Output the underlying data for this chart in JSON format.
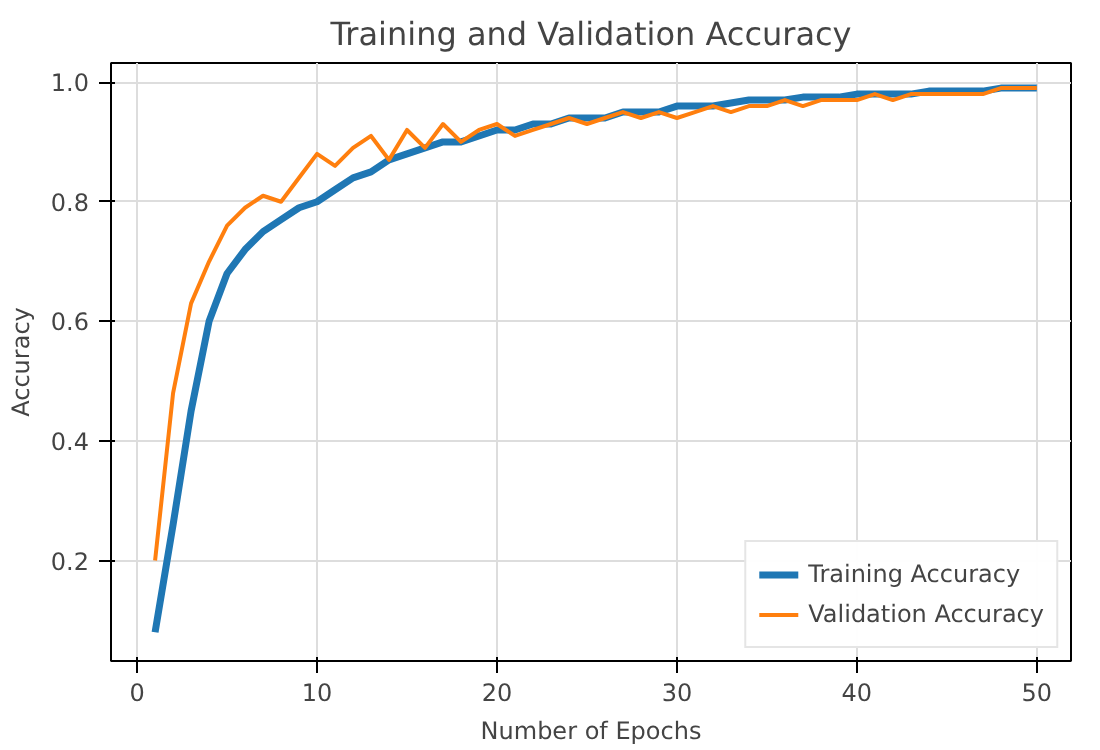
{
  "chart_data": {
    "type": "line",
    "title": "Training and Validation Accuracy",
    "xlabel": "Number of Epochs",
    "ylabel": "Accuracy",
    "x": [
      1,
      2,
      3,
      4,
      5,
      6,
      7,
      8,
      9,
      10,
      11,
      12,
      13,
      14,
      15,
      16,
      17,
      18,
      19,
      20,
      21,
      22,
      23,
      24,
      25,
      26,
      27,
      28,
      29,
      30,
      31,
      32,
      33,
      34,
      35,
      36,
      37,
      38,
      39,
      40,
      41,
      42,
      43,
      44,
      45,
      46,
      47,
      48,
      49,
      50
    ],
    "series": [
      {
        "name": "Training Accuracy",
        "color": "#1f77b4",
        "values": [
          0.08,
          0.26,
          0.45,
          0.6,
          0.68,
          0.72,
          0.75,
          0.77,
          0.79,
          0.8,
          0.82,
          0.84,
          0.85,
          0.87,
          0.88,
          0.89,
          0.9,
          0.9,
          0.91,
          0.92,
          0.92,
          0.93,
          0.93,
          0.94,
          0.94,
          0.94,
          0.95,
          0.95,
          0.95,
          0.96,
          0.96,
          0.96,
          0.965,
          0.97,
          0.97,
          0.97,
          0.975,
          0.975,
          0.975,
          0.98,
          0.98,
          0.98,
          0.98,
          0.985,
          0.985,
          0.985,
          0.985,
          0.99,
          0.99,
          0.99
        ]
      },
      {
        "name": "Validation Accuracy",
        "color": "#ff7f0e",
        "values": [
          0.2,
          0.48,
          0.63,
          0.7,
          0.76,
          0.79,
          0.81,
          0.8,
          0.84,
          0.88,
          0.86,
          0.89,
          0.91,
          0.87,
          0.92,
          0.89,
          0.93,
          0.9,
          0.92,
          0.93,
          0.91,
          0.92,
          0.93,
          0.94,
          0.93,
          0.94,
          0.95,
          0.94,
          0.95,
          0.94,
          0.95,
          0.96,
          0.95,
          0.96,
          0.96,
          0.97,
          0.96,
          0.97,
          0.97,
          0.97,
          0.98,
          0.97,
          0.98,
          0.98,
          0.98,
          0.98,
          0.98,
          0.99,
          0.99,
          0.99
        ]
      }
    ],
    "xlim": [
      -1.45,
      51.9
    ],
    "ylim": [
      0.032,
      1.032
    ],
    "xticks": [
      0,
      10,
      20,
      30,
      40,
      50
    ],
    "yticks": [
      {
        "value": 0.2,
        "label": "0.2"
      },
      {
        "value": 0.4,
        "label": "0.4"
      },
      {
        "value": 0.6,
        "label": "0.6"
      },
      {
        "value": 0.8,
        "label": "0.8"
      },
      {
        "value": 1.0,
        "label": "1.0"
      }
    ],
    "grid": true,
    "legend": "bottom right",
    "line_style": "solid"
  }
}
